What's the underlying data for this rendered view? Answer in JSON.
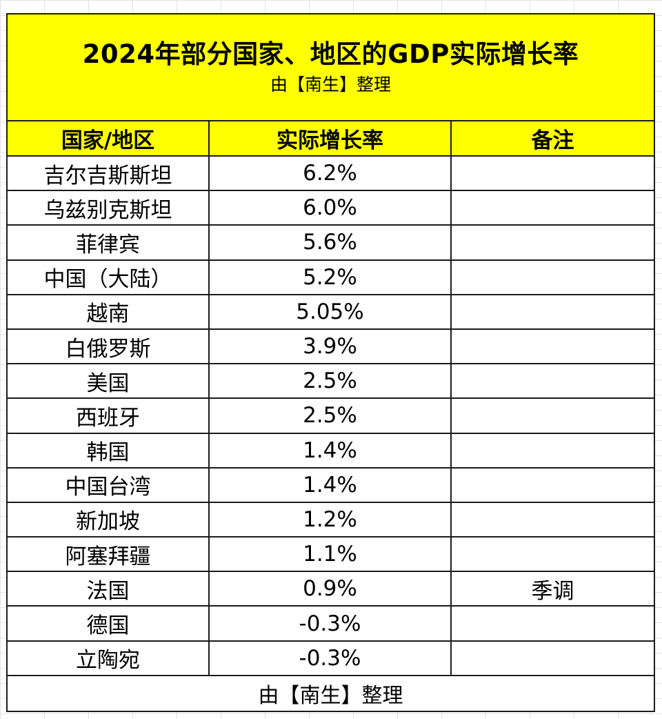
{
  "title": "2024年部分国家、地区的GDP实际增长率",
  "subtitle": "由【南生】整理",
  "headers": {
    "country": "国家/地区",
    "growth": "实际增长率",
    "note": "备注"
  },
  "rows": [
    {
      "country": "吉尔吉斯斯坦",
      "growth": "6.2%",
      "note": ""
    },
    {
      "country": "乌兹别克斯坦",
      "growth": "6.0%",
      "note": ""
    },
    {
      "country": "菲律宾",
      "growth": "5.6%",
      "note": ""
    },
    {
      "country": "中国（大陆）",
      "growth": "5.2%",
      "note": ""
    },
    {
      "country": "越南",
      "growth": "5.05%",
      "note": ""
    },
    {
      "country": "白俄罗斯",
      "growth": "3.9%",
      "note": ""
    },
    {
      "country": "美国",
      "growth": "2.5%",
      "note": ""
    },
    {
      "country": "西班牙",
      "growth": "2.5%",
      "note": ""
    },
    {
      "country": "韩国",
      "growth": "1.4%",
      "note": ""
    },
    {
      "country": "中国台湾",
      "growth": "1.4%",
      "note": ""
    },
    {
      "country": "新加坡",
      "growth": "1.2%",
      "note": ""
    },
    {
      "country": "阿塞拜疆",
      "growth": "1.1%",
      "note": ""
    },
    {
      "country": "法国",
      "growth": "0.9%",
      "note": "季调"
    },
    {
      "country": "德国",
      "growth": "-0.3%",
      "note": ""
    },
    {
      "country": "立陶宛",
      "growth": "-0.3%",
      "note": ""
    }
  ],
  "footer": "由【南生】整理",
  "colors": {
    "header_bg": "#ffff00",
    "border": "#1a1a1a",
    "grid": "#e3e3e3"
  }
}
